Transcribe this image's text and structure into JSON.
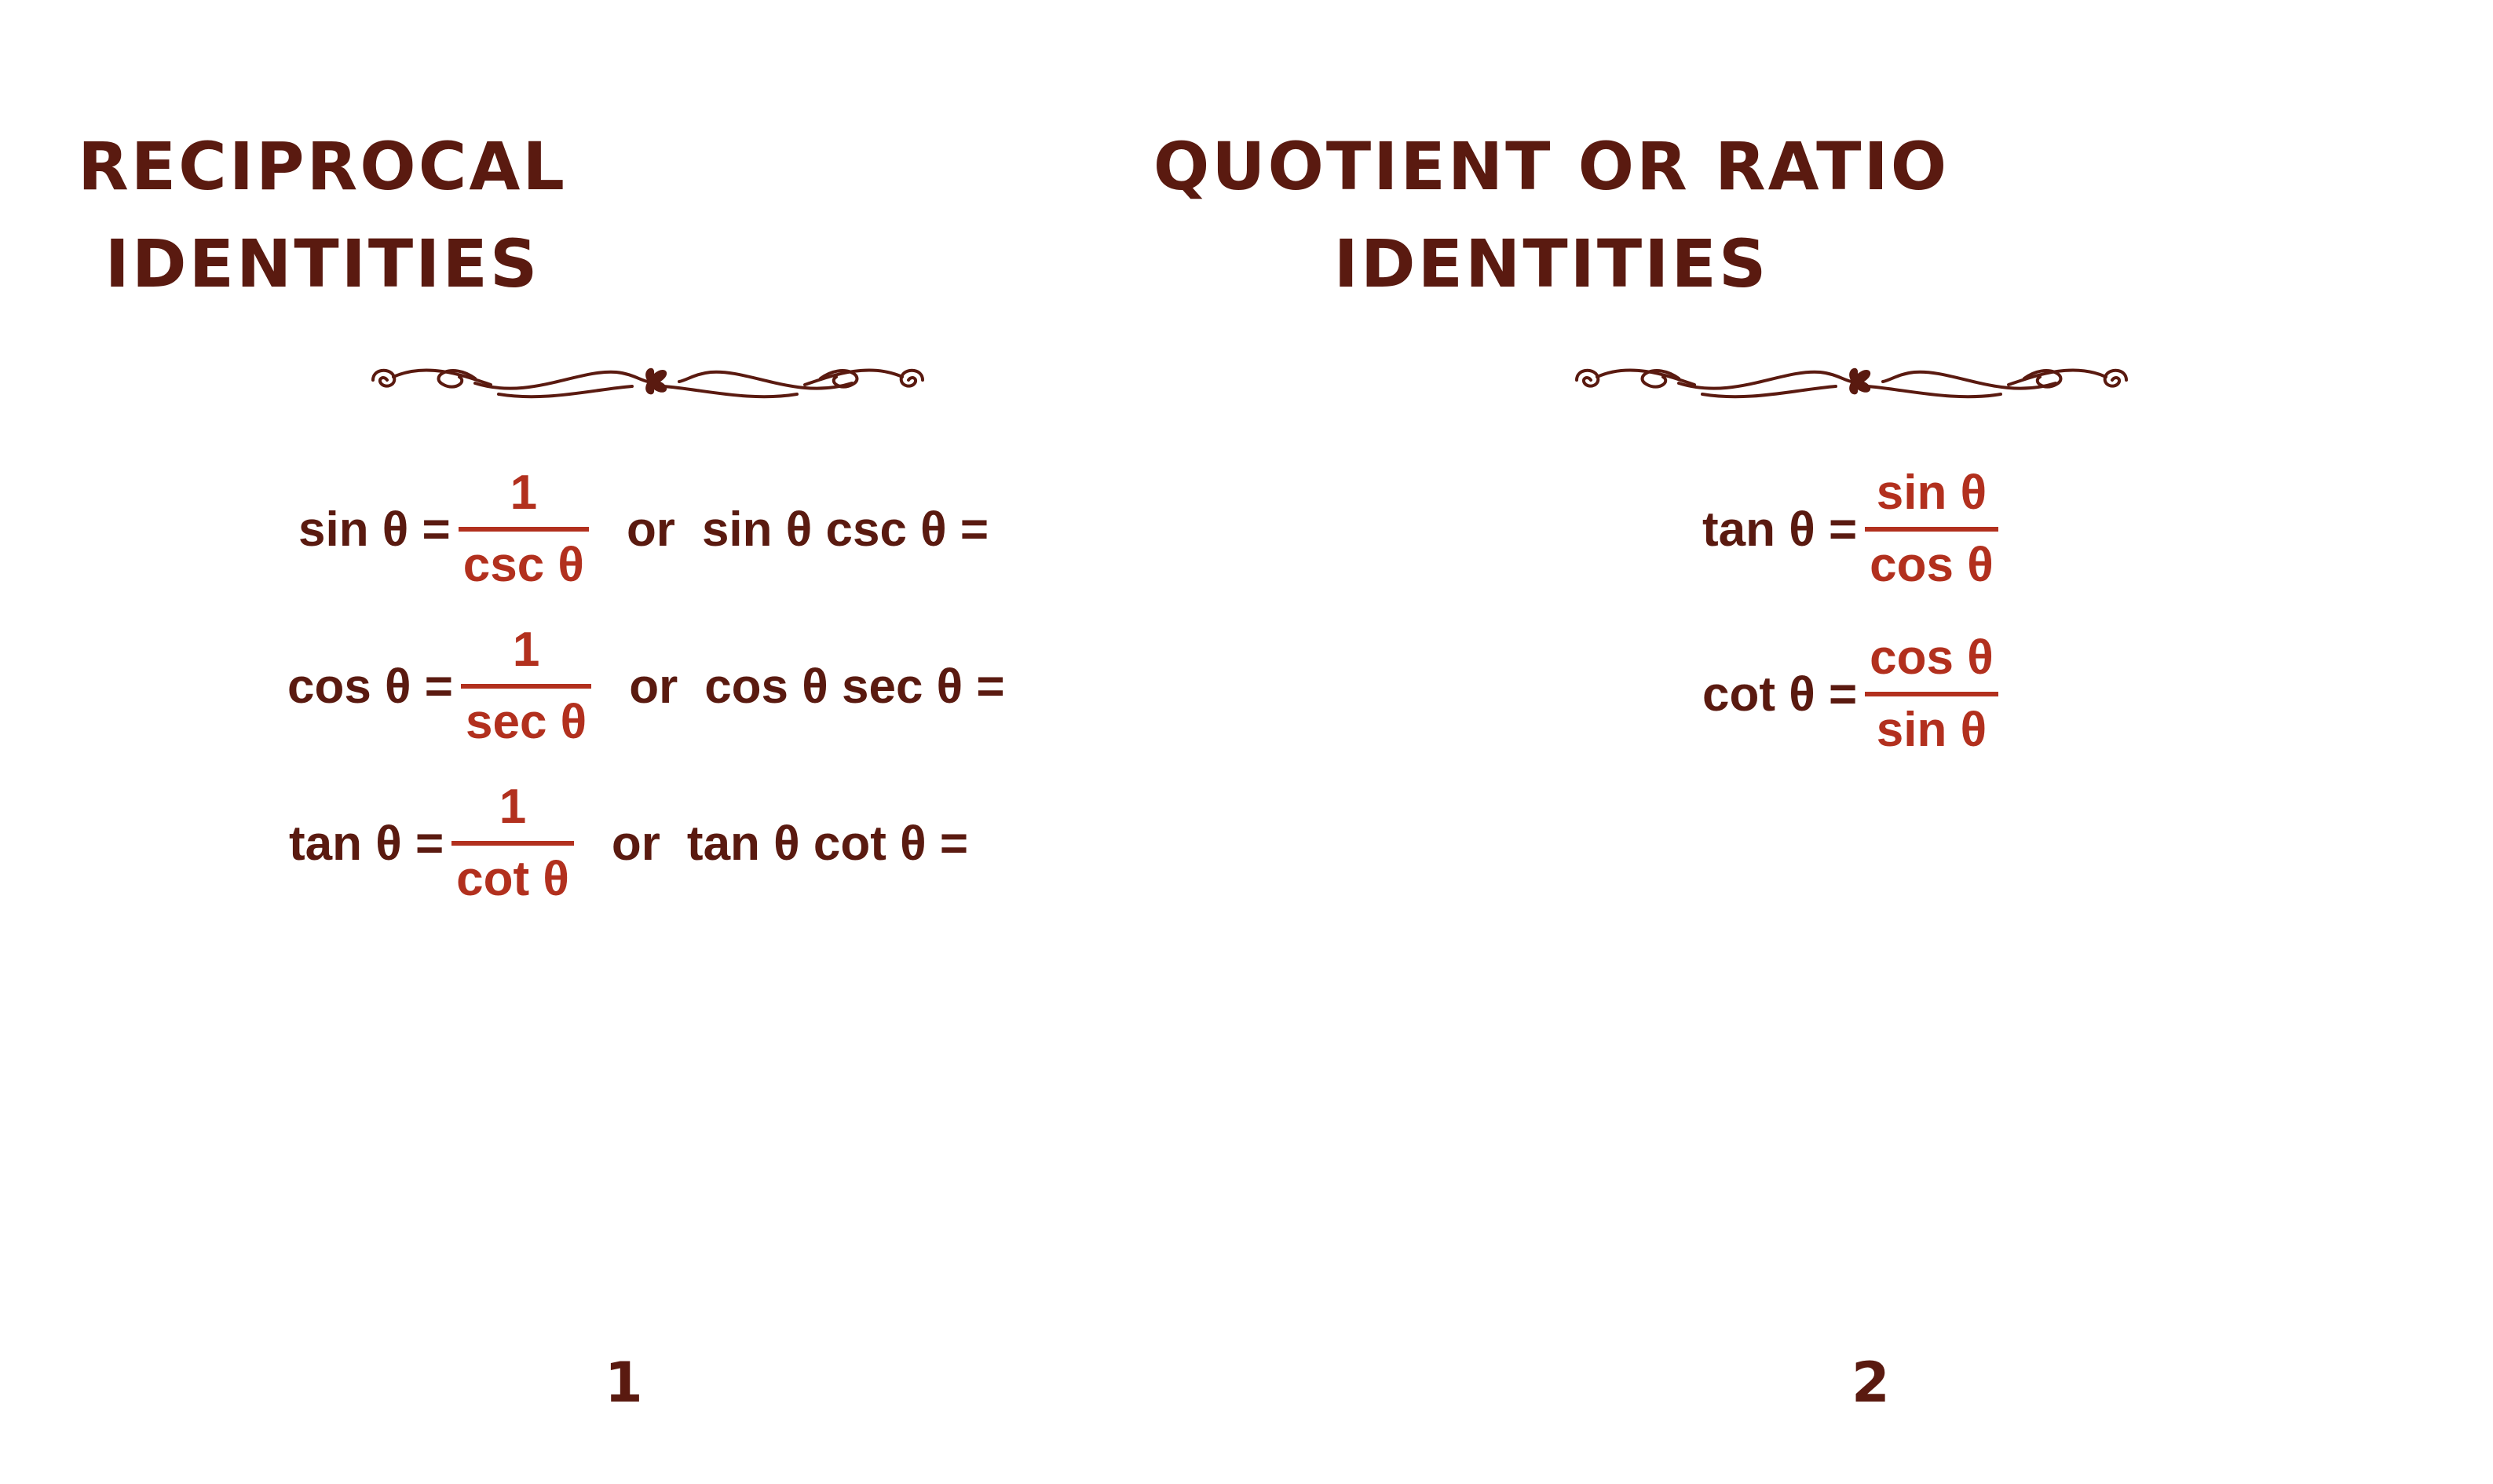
{
  "pages": [
    {
      "title_line1": "RECIPROCAL",
      "title_line2": "IDENTITIES",
      "page_number": "1",
      "rows": [
        {
          "lhs": "sin θ =",
          "num": "1",
          "den": "csc θ",
          "or": "or",
          "rhs": "sin θ csc θ ="
        },
        {
          "lhs": "cos θ =",
          "num": "1",
          "den": "sec θ",
          "or": "or",
          "rhs": "cos θ sec θ ="
        },
        {
          "lhs": "tan θ =",
          "num": "1",
          "den": "cot θ",
          "or": "or",
          "rhs": "tan θ cot θ ="
        }
      ]
    },
    {
      "title_line1": "QUOTIENT OR RATIO",
      "title_line2": "IDENTITIES",
      "page_number": "2",
      "rows": [
        {
          "lhs": "tan θ =",
          "num": "sin θ",
          "den": "cos θ"
        },
        {
          "lhs": "cot θ =",
          "num": "cos θ",
          "den": "sin θ"
        }
      ]
    }
  ],
  "colors": {
    "text": "#5a1a10",
    "accent": "#b2301e",
    "background": "#ffffff"
  },
  "icons": [
    "flourish-divider-icon"
  ]
}
